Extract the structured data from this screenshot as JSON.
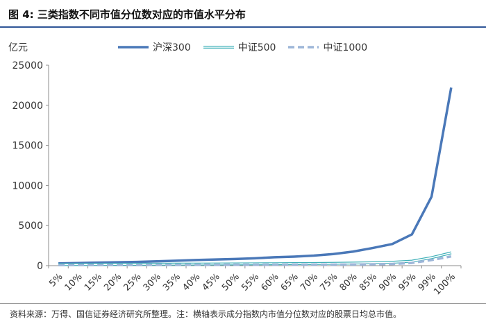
{
  "figure": {
    "title_prefix": "图 4:",
    "title": "三类指数不同市值分位数对应的市值水平分布",
    "unit_label": "亿元",
    "source_note": "资料来源：万得、国信证券经济研究所整理。注：横轴表示成分指数内市值分位数对应的股票日均总市值。"
  },
  "colors": {
    "hs300": "#4a78b8",
    "zz500": "#3fb0b8",
    "zz1000": "#9db6d8",
    "title_rule": "#2f5597"
  },
  "chart_data": {
    "type": "line",
    "title": "",
    "xlabel": "",
    "ylabel": "亿元",
    "ylim": [
      0,
      25000
    ],
    "yticks": [
      0,
      5000,
      10000,
      15000,
      20000,
      25000
    ],
    "grid": false,
    "legend_position": "top",
    "x": [
      "5%",
      "10%",
      "15%",
      "20%",
      "25%",
      "30%",
      "35%",
      "40%",
      "45%",
      "50%",
      "55%",
      "60%",
      "65%",
      "70%",
      "75%",
      "80%",
      "85%",
      "90%",
      "95%",
      "99%",
      "100%"
    ],
    "series": [
      {
        "name": "沪深300",
        "key": "hs300",
        "style": "solid-thick",
        "values": [
          280,
          330,
          380,
          420,
          470,
          540,
          620,
          700,
          770,
          830,
          920,
          1050,
          1130,
          1250,
          1450,
          1750,
          2200,
          2700,
          3900,
          8600,
          22200
        ]
      },
      {
        "name": "中证500",
        "key": "zz500",
        "style": "double",
        "values": [
          130,
          140,
          150,
          160,
          170,
          180,
          190,
          200,
          210,
          220,
          230,
          240,
          255,
          270,
          290,
          320,
          360,
          420,
          560,
          1000,
          1600
        ]
      },
      {
        "name": "中证1000",
        "key": "zz1000",
        "style": "dashed",
        "values": [
          60,
          65,
          70,
          75,
          80,
          85,
          90,
          95,
          100,
          105,
          110,
          115,
          120,
          125,
          135,
          150,
          170,
          210,
          340,
          700,
          1150
        ]
      }
    ]
  }
}
